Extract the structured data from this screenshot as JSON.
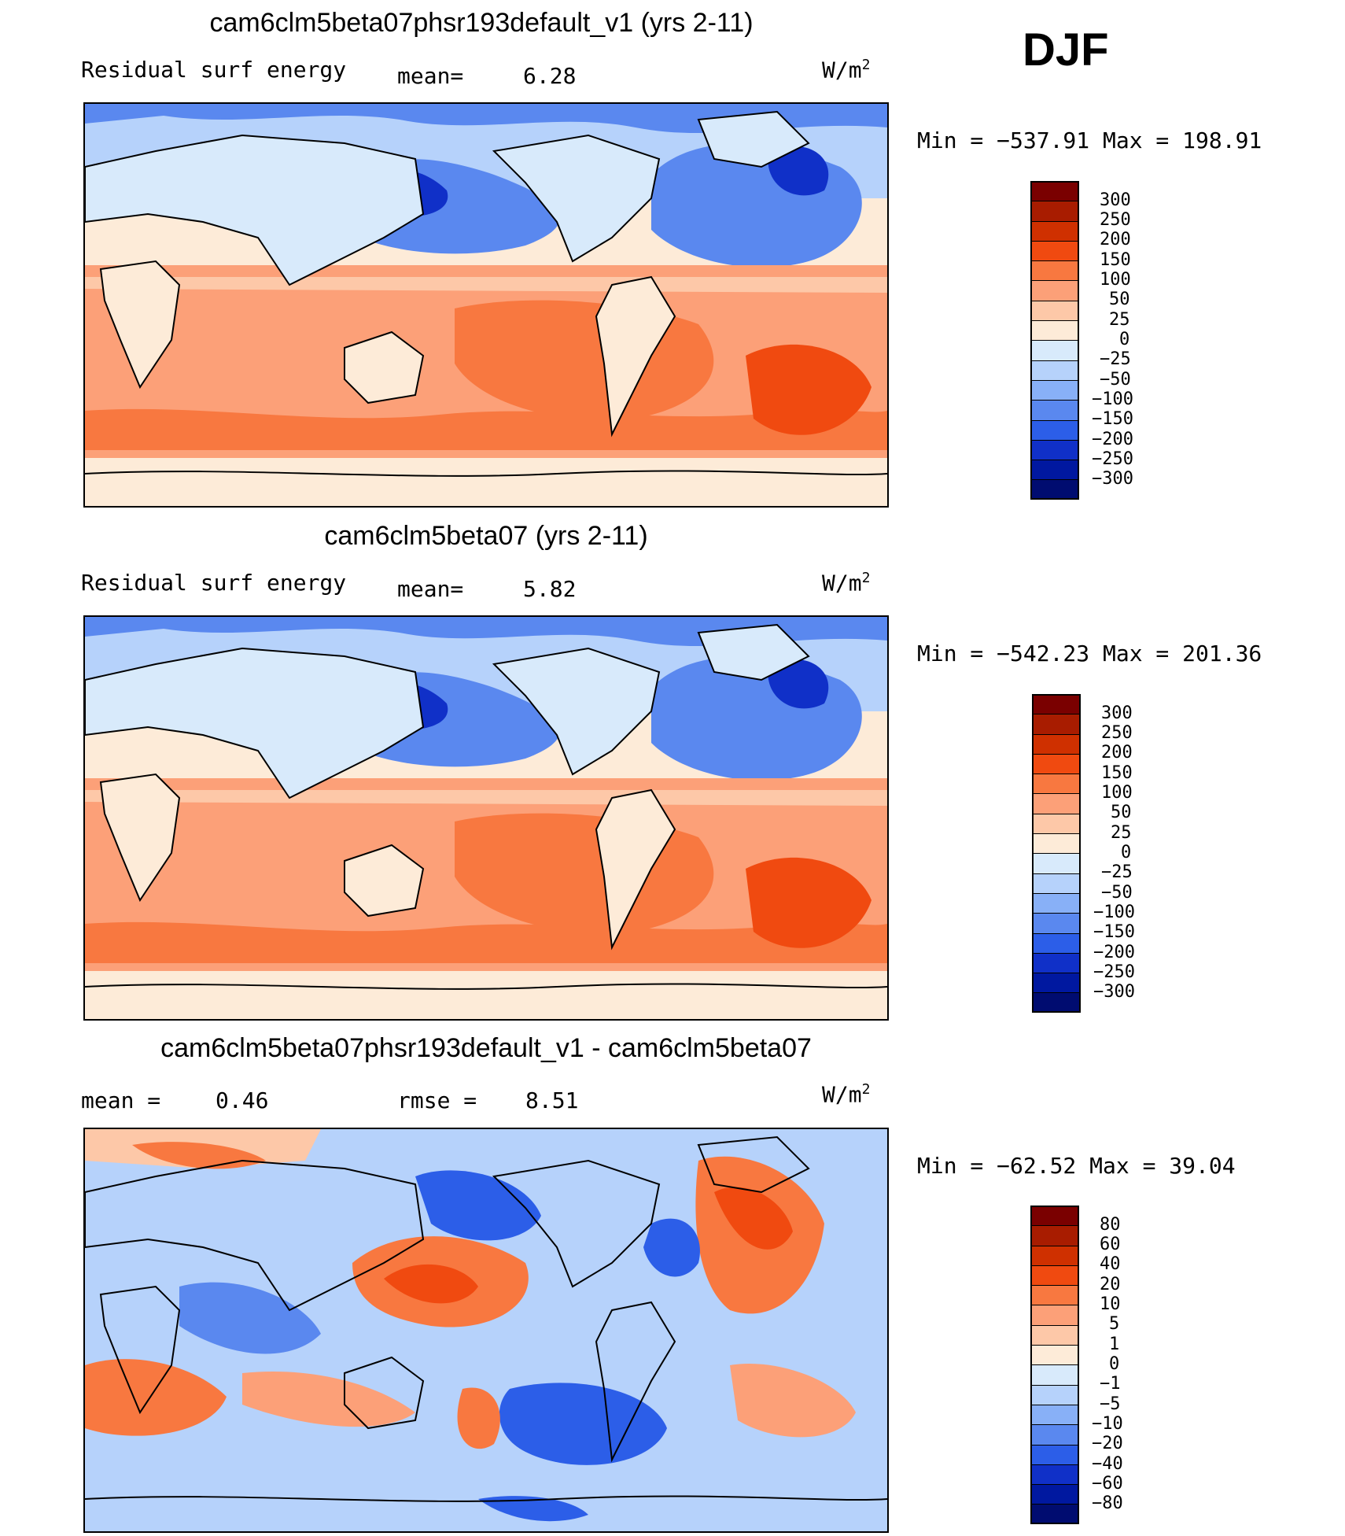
{
  "season": "DJF",
  "panels": [
    {
      "title": "cam6clm5beta07phsr193default_v1 (yrs 2-11)",
      "left_label": "Residual surf energy",
      "stat_text": "mean=",
      "stat_value": "6.28",
      "units_prefix": "W/m",
      "units_sup": "2",
      "minmax_text": "Min = −537.91 Max = 198.91",
      "colorbar_labels": [
        "300",
        "250",
        "200",
        "150",
        "100",
        "50",
        "25",
        "0",
        "−25",
        "−50",
        "−100",
        "−150",
        "−200",
        "−250",
        "−300"
      ]
    },
    {
      "title": "cam6clm5beta07 (yrs 2-11)",
      "left_label": "Residual surf energy",
      "stat_text": "mean=",
      "stat_value": "5.82",
      "units_prefix": "W/m",
      "units_sup": "2",
      "minmax_text": "Min = −542.23 Max = 201.36",
      "colorbar_labels": [
        "300",
        "250",
        "200",
        "150",
        "100",
        "50",
        "25",
        "0",
        "−25",
        "−50",
        "−100",
        "−150",
        "−200",
        "−250",
        "−300"
      ]
    },
    {
      "title": "cam6clm5beta07phsr193default_v1 - cam6clm5beta07",
      "left_label": "mean =",
      "left_value": "0.46",
      "stat_text": "rmse =",
      "stat_value": "8.51",
      "units_prefix": "W/m",
      "units_sup": "2",
      "minmax_text": "Min = −62.52 Max =  39.04",
      "colorbar_labels": [
        "80",
        "60",
        "40",
        "20",
        "10",
        "5",
        "1",
        "0",
        "−1",
        "−5",
        "−10",
        "−20",
        "−40",
        "−60",
        "−80"
      ]
    }
  ],
  "colors": {
    "colorbar": [
      "#7a0000",
      "#a81c00",
      "#cf3000",
      "#f04a10",
      "#f87840",
      "#fca078",
      "#fdc8a8",
      "#fdebd8",
      "#d8eafb",
      "#b6d2fb",
      "#88b0f7",
      "#5a88ef",
      "#2c5ee8",
      "#1030c8",
      "#0018a0",
      "#000c70"
    ]
  }
}
